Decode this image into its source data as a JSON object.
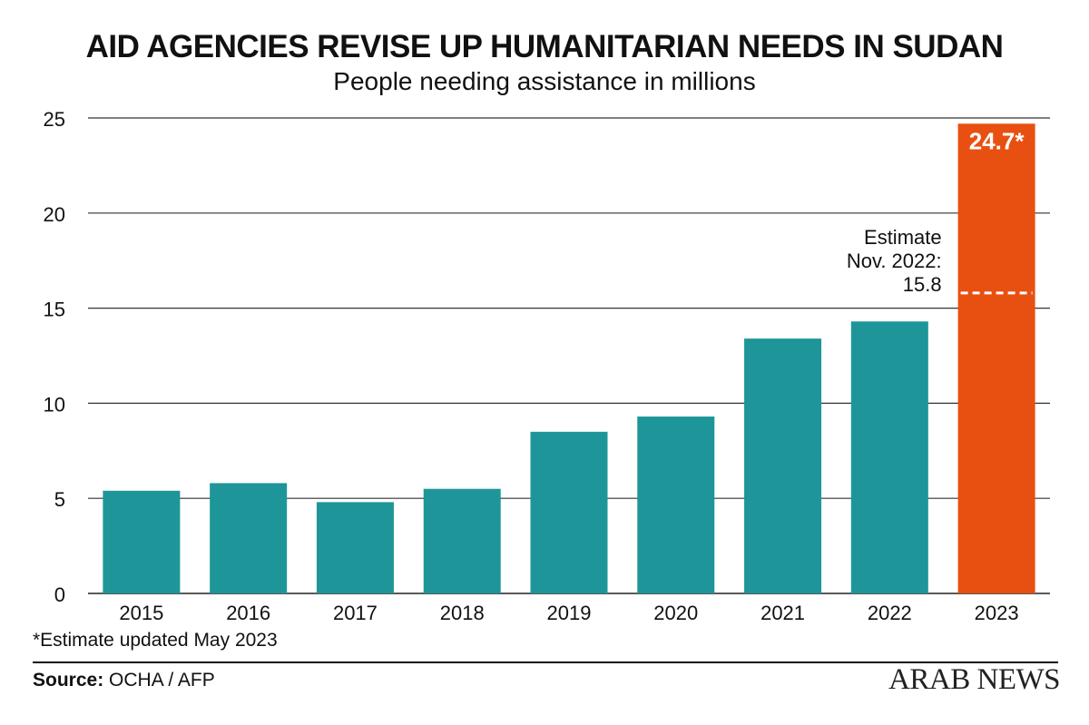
{
  "header": {
    "title": "AID AGENCIES REVISE UP HUMANITARIAN NEEDS IN SUDAN",
    "subtitle": "People needing assistance in millions"
  },
  "footer": {
    "footnote": "*Estimate updated May 2023",
    "source_label": "Source:",
    "source_value": "OCHA / AFP",
    "brand": "ARAB NEWS"
  },
  "colors": {
    "bar": "#1e9699",
    "highlight_bar": "#e85012",
    "grid": "#333333",
    "text": "#111111"
  },
  "chart_data": {
    "type": "bar",
    "categories": [
      "2015",
      "2016",
      "2017",
      "2018",
      "2019",
      "2020",
      "2021",
      "2022",
      "2023"
    ],
    "values": [
      5.4,
      5.8,
      4.8,
      5.5,
      8.5,
      9.3,
      13.4,
      14.3,
      24.7
    ],
    "highlight_index": 8,
    "highlight_label": "24.7*",
    "ylim": [
      0,
      25
    ],
    "yticks": [
      0,
      5,
      10,
      15,
      20,
      25
    ],
    "grid": true,
    "reference": {
      "value": 15.8,
      "label_lines": [
        "Estimate",
        "Nov. 2022:",
        "15.8"
      ]
    }
  }
}
